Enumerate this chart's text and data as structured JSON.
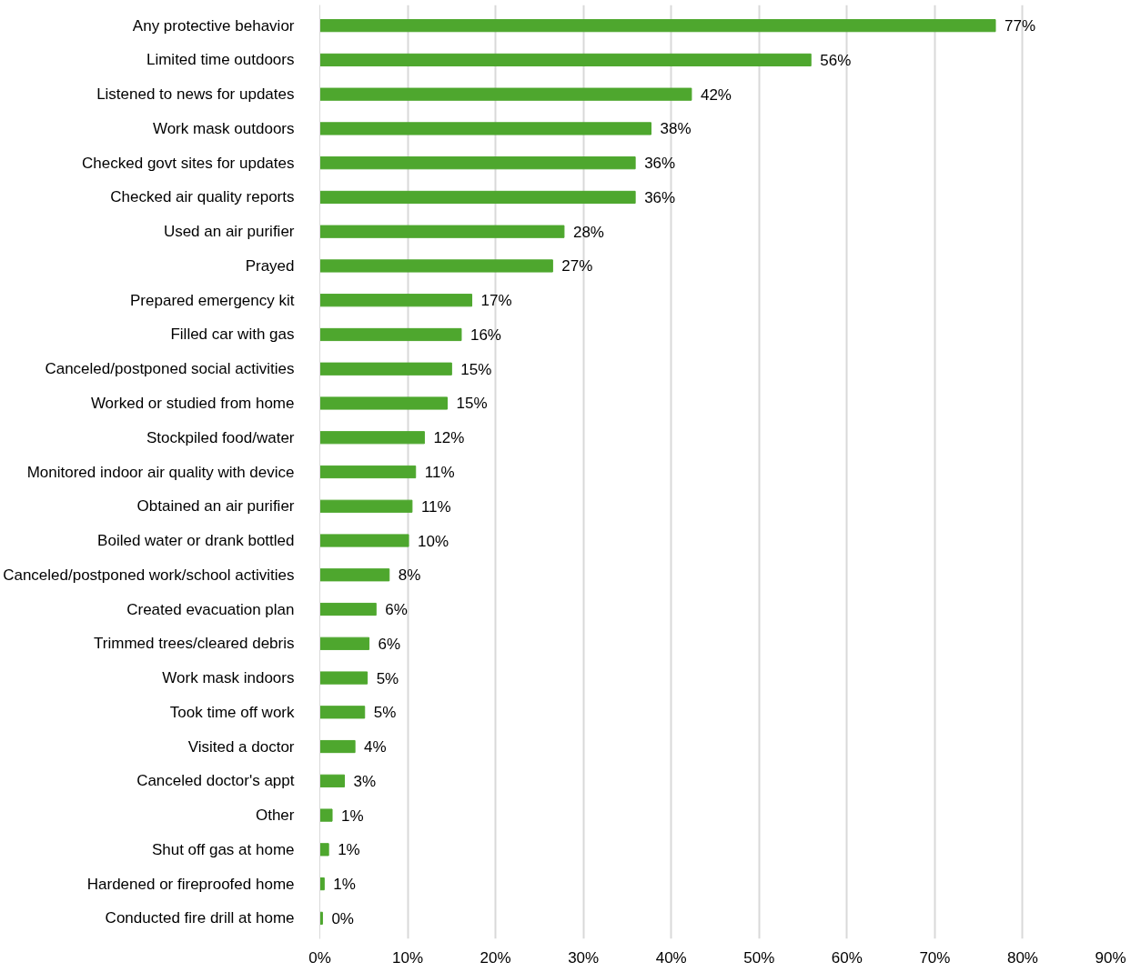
{
  "chart_data": {
    "type": "bar",
    "orientation": "horizontal",
    "categories": [
      "Any protective behavior",
      "Limited time outdoors",
      "Listened to news for updates",
      "Work mask outdoors",
      "Checked govt sites for updates",
      "Checked air quality reports",
      "Used an air purifier",
      "Prayed",
      "Prepared emergency kit",
      "Filled car with gas",
      "Canceled/postponed social activities",
      "Worked or studied from home",
      "Stockpiled food/water",
      "Monitored indoor air quality with device",
      "Obtained an air purifier",
      "Boiled water or drank bottled",
      "Canceled/postponed work/school activities",
      "Created evacuation plan",
      "Trimmed trees/cleared debris",
      "Work mask indoors",
      "Took time off work",
      "Visited a doctor",
      "Canceled doctor's appt",
      "Other",
      "Shut off gas at home",
      "Hardened or fireproofed home",
      "Conducted fire drill at home"
    ],
    "values": [
      76.9,
      55.9,
      42.3,
      37.7,
      35.9,
      35.9,
      27.8,
      26.5,
      17.3,
      16.1,
      15.0,
      14.5,
      11.9,
      10.9,
      10.5,
      10.1,
      7.9,
      6.4,
      5.6,
      5.4,
      5.1,
      4.0,
      2.8,
      1.4,
      1.0,
      0.5,
      0.3
    ],
    "value_labels": [
      "77%",
      "56%",
      "42%",
      "38%",
      "36%",
      "36%",
      "28%",
      "27%",
      "17%",
      "16%",
      "15%",
      "15%",
      "12%",
      "11%",
      "11%",
      "10%",
      "8%",
      "6%",
      "6%",
      "5%",
      "5%",
      "4%",
      "3%",
      "1%",
      "1%",
      "1%",
      "0%"
    ],
    "color": "#4ea72e",
    "xlim": [
      0,
      90
    ],
    "xticks": [
      {
        "value": 0,
        "label": "0%"
      },
      {
        "value": 10,
        "label": "10%"
      },
      {
        "value": 20,
        "label": "20%"
      },
      {
        "value": 30,
        "label": "30%"
      },
      {
        "value": 40,
        "label": "40%"
      },
      {
        "value": 50,
        "label": "50%"
      },
      {
        "value": 60,
        "label": "60%"
      },
      {
        "value": 70,
        "label": "70%"
      },
      {
        "value": 80,
        "label": "80%"
      },
      {
        "value": 90,
        "label": "90%"
      }
    ],
    "grid": "x"
  }
}
